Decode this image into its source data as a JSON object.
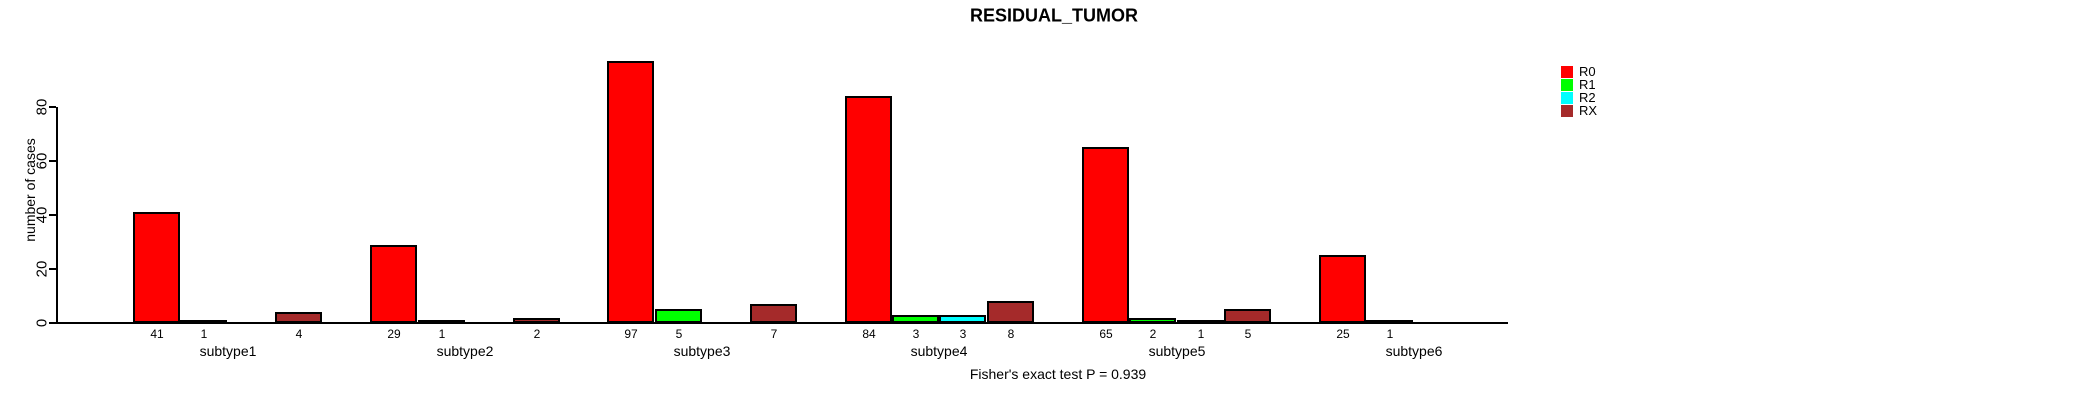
{
  "chart_data": {
    "type": "bar",
    "title": "RESIDUAL_TUMOR",
    "ylabel": "number of cases",
    "xlabel": "",
    "categories": [
      "subtype1",
      "subtype2",
      "subtype3",
      "subtype4",
      "subtype5",
      "subtype6"
    ],
    "series": [
      {
        "name": "R0",
        "color": "#ff0000",
        "values": [
          41,
          29,
          97,
          84,
          65,
          25
        ]
      },
      {
        "name": "R1",
        "color": "#00ff00",
        "values": [
          1,
          1,
          5,
          3,
          2,
          1
        ]
      },
      {
        "name": "R2",
        "color": "#00ffff",
        "values": [
          null,
          null,
          null,
          3,
          1,
          null
        ]
      },
      {
        "name": "RX",
        "color": "#a52a2a",
        "values": [
          4,
          2,
          7,
          8,
          5,
          null
        ]
      }
    ],
    "yticks": [
      0,
      20,
      40,
      60,
      80
    ],
    "ylim": [
      0,
      100
    ],
    "grid": false,
    "legend_position": "right-outside-top",
    "bar_value_labels": true,
    "annotation": "Fisher's exact test P = 0.939"
  }
}
